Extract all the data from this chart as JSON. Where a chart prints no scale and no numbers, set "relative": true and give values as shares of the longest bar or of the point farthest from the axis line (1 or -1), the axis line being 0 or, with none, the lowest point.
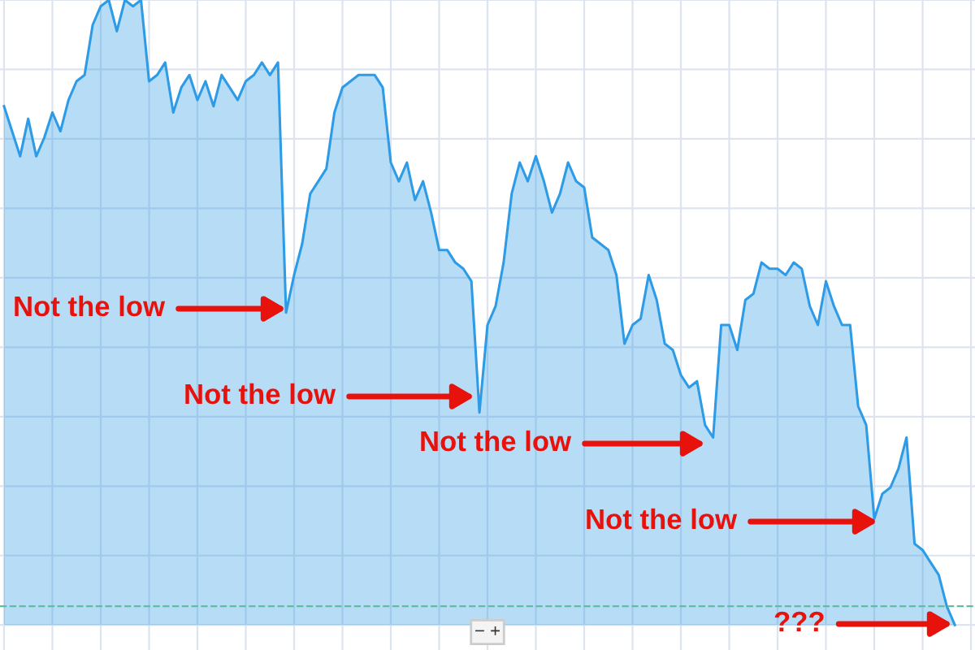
{
  "chart_data": {
    "type": "area",
    "relative": true,
    "grid": true,
    "categories": [
      null,
      null,
      null,
      null,
      null,
      null,
      null,
      null,
      null,
      null,
      null,
      null,
      null,
      null,
      null,
      null,
      null,
      null,
      null,
      null,
      null,
      null,
      null,
      null,
      null,
      null,
      null,
      null,
      null,
      null,
      null,
      null,
      null,
      null,
      null,
      null,
      null,
      null,
      null,
      null,
      null,
      null,
      null,
      null,
      null,
      null,
      null,
      null,
      null,
      null,
      null,
      null,
      null,
      null,
      null,
      null,
      null,
      null,
      null,
      null,
      null,
      null,
      null,
      null,
      null,
      null,
      null,
      null,
      null,
      null,
      null,
      null,
      null,
      null,
      null,
      null,
      null,
      null,
      null,
      null,
      null,
      null,
      null,
      null,
      null,
      null,
      null,
      null,
      null,
      null,
      null,
      null,
      null,
      null,
      null,
      null,
      null,
      null,
      null,
      null,
      null,
      null,
      null,
      null,
      null,
      null,
      null,
      null,
      null,
      null,
      null,
      null,
      null,
      null,
      null,
      null,
      null,
      null,
      null
    ],
    "series": [
      {
        "color": "#2e9be6",
        "values": [
          0.83,
          0.79,
          0.75,
          0.81,
          0.75,
          0.78,
          0.82,
          0.79,
          0.84,
          0.87,
          0.88,
          0.96,
          0.99,
          1,
          0.95,
          1,
          0.99,
          1,
          0.87,
          0.88,
          0.9,
          0.82,
          0.86,
          0.88,
          0.84,
          0.87,
          0.83,
          0.88,
          0.86,
          0.84,
          0.87,
          0.88,
          0.9,
          0.88,
          0.9,
          0.5,
          0.56,
          0.61,
          0.69,
          0.71,
          0.73,
          0.82,
          0.86,
          0.87,
          0.88,
          0.88,
          0.88,
          0.86,
          0.74,
          0.71,
          0.74,
          0.68,
          0.71,
          0.66,
          0.6,
          0.6,
          0.58,
          0.57,
          0.55,
          0.34,
          0.48,
          0.51,
          0.58,
          0.69,
          0.74,
          0.71,
          0.75,
          0.71,
          0.66,
          0.69,
          0.74,
          0.71,
          0.7,
          0.62,
          0.61,
          0.6,
          0.56,
          0.45,
          0.48,
          0.49,
          0.56,
          0.52,
          0.45,
          0.44,
          0.4,
          0.38,
          0.39,
          0.32,
          0.3,
          0.48,
          0.48,
          0.44,
          0.52,
          0.53,
          0.58,
          0.57,
          0.57,
          0.56,
          0.58,
          0.57,
          0.51,
          0.48,
          0.55,
          0.51,
          0.48,
          0.48,
          0.35,
          0.32,
          0.17,
          0.21,
          0.22,
          0.25,
          0.3,
          0.13,
          0.12,
          0.1,
          0.08,
          0.03,
          0
        ]
      }
    ],
    "ref_lines": [
      {
        "axis": "y",
        "value": 0.03,
        "color": "#5cc0a0",
        "line_style": "dashed"
      }
    ],
    "annotations": [
      "Not the low",
      "Not the low",
      "Not the low",
      "Not the low",
      "???",
      "− +"
    ]
  }
}
